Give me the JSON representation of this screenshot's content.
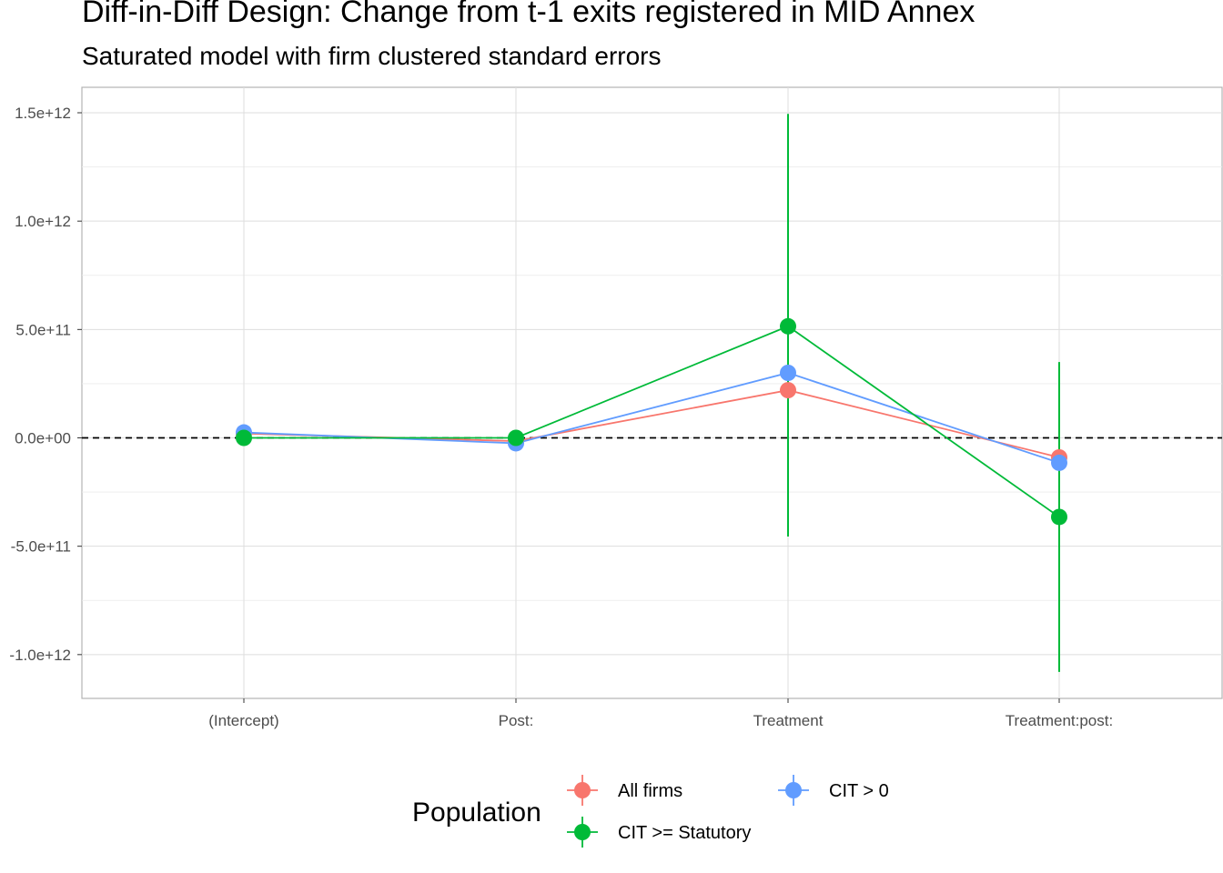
{
  "chart_data": {
    "type": "scatter",
    "title": "Diff-in-Diff Design: Change from t-1 exits registered in MID Annex",
    "subtitle": "Saturated model with firm clustered standard errors",
    "xlabel": "",
    "ylabel": "",
    "categories": [
      "(Intercept)",
      "Post:",
      "Treatment",
      "Treatment:post:"
    ],
    "y_ticks": [
      1500000000000.0,
      1000000000000.0,
      500000000000.0,
      0,
      -500000000000.0,
      -1000000000000.0
    ],
    "y_tick_labels": [
      "1.5e+12",
      "1.0e+12",
      "5.0e+11",
      "0.0e+00",
      "-5.0e+11",
      "-1.0e+12"
    ],
    "ylim": [
      -1200000000000.0,
      1620000000000.0
    ],
    "reference_line": 0,
    "grid": true,
    "legend": {
      "title": "Population",
      "position": "bottom"
    },
    "series": [
      {
        "name": "All firms",
        "color": "#F8766D",
        "values": [
          20000000000.0,
          -15000000000.0,
          220000000000.0,
          -90000000000.0
        ],
        "ci_low": [
          -15000000000.0,
          -35000000000.0,
          -400000000000.0,
          -200000000000.0
        ],
        "ci_high": [
          55000000000.0,
          5000000000.0,
          800000000000.0,
          20000000000.0
        ]
      },
      {
        "name": "CIT >= Statutory",
        "color": "#00BA38",
        "values": [
          0,
          0,
          515000000000.0,
          -365000000000.0
        ],
        "ci_low": [
          -15000000000.0,
          -15000000000.0,
          -455000000000.0,
          -1080000000000.0
        ],
        "ci_high": [
          15000000000.0,
          15000000000.0,
          1495000000000.0,
          350000000000.0
        ]
      },
      {
        "name": "CIT > 0",
        "color": "#619CFF",
        "values": [
          25000000000.0,
          -25000000000.0,
          300000000000.0,
          -115000000000.0
        ],
        "ci_low": [
          -10000000000.0,
          -55000000000.0,
          -220000000000.0,
          -290000000000.0
        ],
        "ci_high": [
          60000000000.0,
          5000000000.0,
          820000000000.0,
          80000000000.0
        ]
      }
    ]
  }
}
